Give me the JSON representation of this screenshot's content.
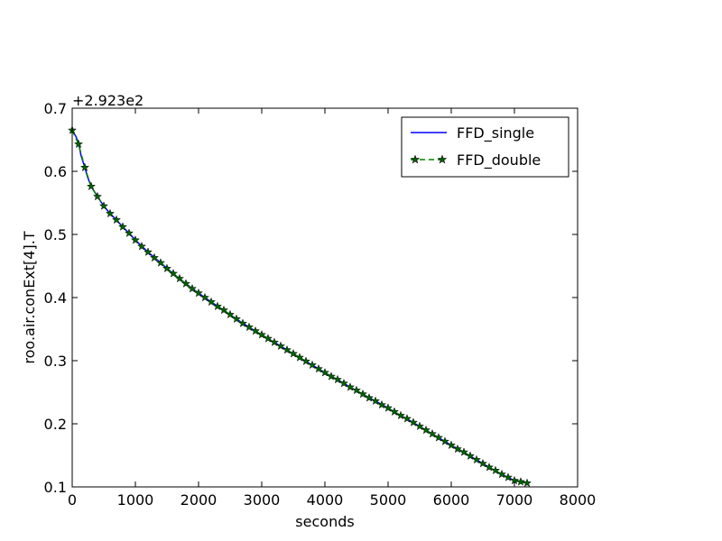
{
  "chart_data": {
    "type": "line",
    "title": "",
    "xlabel": "seconds",
    "ylabel": "roo.air.conExt[4].T",
    "offset_label": "+2.923e2",
    "xlim": [
      0,
      8000
    ],
    "ylim": [
      0.1,
      0.7
    ],
    "xticks": [
      "0",
      "1000",
      "2000",
      "3000",
      "4000",
      "5000",
      "6000",
      "7000",
      "8000"
    ],
    "yticks": [
      "0.1",
      "0.2",
      "0.3",
      "0.4",
      "0.5",
      "0.6",
      "0.7"
    ],
    "grid": false,
    "legend_position": "top-right",
    "series": [
      {
        "name": "FFD_single",
        "color": "#0000ff",
        "style": "solid",
        "marker": "none",
        "x": [
          0,
          60,
          100,
          140,
          200,
          240,
          300,
          400,
          500,
          600,
          700,
          800,
          900,
          1000,
          1200,
          1400,
          1600,
          1800,
          2000,
          2200,
          2400,
          2600,
          2800,
          3000,
          3200,
          3400,
          3600,
          3800,
          4000,
          4200,
          4400,
          4600,
          4800,
          5000,
          5200,
          5400,
          5600,
          5800,
          6000,
          6200,
          6400,
          6600,
          6800,
          7000,
          7200
        ],
        "y": [
          0.665,
          0.655,
          0.645,
          0.625,
          0.606,
          0.592,
          0.576,
          0.56,
          0.545,
          0.533,
          0.523,
          0.512,
          0.502,
          0.491,
          0.472,
          0.455,
          0.438,
          0.422,
          0.407,
          0.393,
          0.38,
          0.366,
          0.353,
          0.341,
          0.329,
          0.317,
          0.305,
          0.293,
          0.281,
          0.27,
          0.258,
          0.247,
          0.236,
          0.225,
          0.213,
          0.202,
          0.19,
          0.178,
          0.166,
          0.155,
          0.143,
          0.131,
          0.12,
          0.11,
          0.106
        ]
      },
      {
        "name": "FFD_double",
        "color": "#008000",
        "style": "dashed",
        "marker": "star",
        "marker_fill": "#006400",
        "x": [
          0,
          100,
          200,
          300,
          400,
          500,
          600,
          700,
          800,
          900,
          1000,
          1100,
          1200,
          1300,
          1400,
          1500,
          1600,
          1700,
          1800,
          1900,
          2000,
          2100,
          2200,
          2300,
          2400,
          2500,
          2600,
          2700,
          2800,
          2900,
          3000,
          3100,
          3200,
          3300,
          3400,
          3500,
          3600,
          3700,
          3800,
          3900,
          4000,
          4100,
          4200,
          4300,
          4400,
          4500,
          4600,
          4700,
          4800,
          4900,
          5000,
          5100,
          5200,
          5300,
          5400,
          5500,
          5600,
          5700,
          5800,
          5900,
          6000,
          6100,
          6200,
          6300,
          6400,
          6500,
          6600,
          6700,
          6800,
          6900,
          7000,
          7100,
          7200
        ],
        "y": [
          0.665,
          0.643,
          0.606,
          0.576,
          0.56,
          0.545,
          0.533,
          0.523,
          0.512,
          0.502,
          0.491,
          0.481,
          0.472,
          0.463,
          0.455,
          0.446,
          0.438,
          0.43,
          0.422,
          0.414,
          0.407,
          0.4,
          0.393,
          0.386,
          0.38,
          0.373,
          0.366,
          0.359,
          0.353,
          0.347,
          0.341,
          0.335,
          0.329,
          0.323,
          0.317,
          0.311,
          0.305,
          0.299,
          0.293,
          0.287,
          0.281,
          0.275,
          0.27,
          0.264,
          0.258,
          0.253,
          0.247,
          0.241,
          0.236,
          0.23,
          0.225,
          0.219,
          0.213,
          0.208,
          0.202,
          0.196,
          0.19,
          0.184,
          0.178,
          0.172,
          0.166,
          0.16,
          0.155,
          0.149,
          0.143,
          0.137,
          0.131,
          0.126,
          0.12,
          0.115,
          0.11,
          0.108,
          0.106
        ]
      }
    ]
  }
}
